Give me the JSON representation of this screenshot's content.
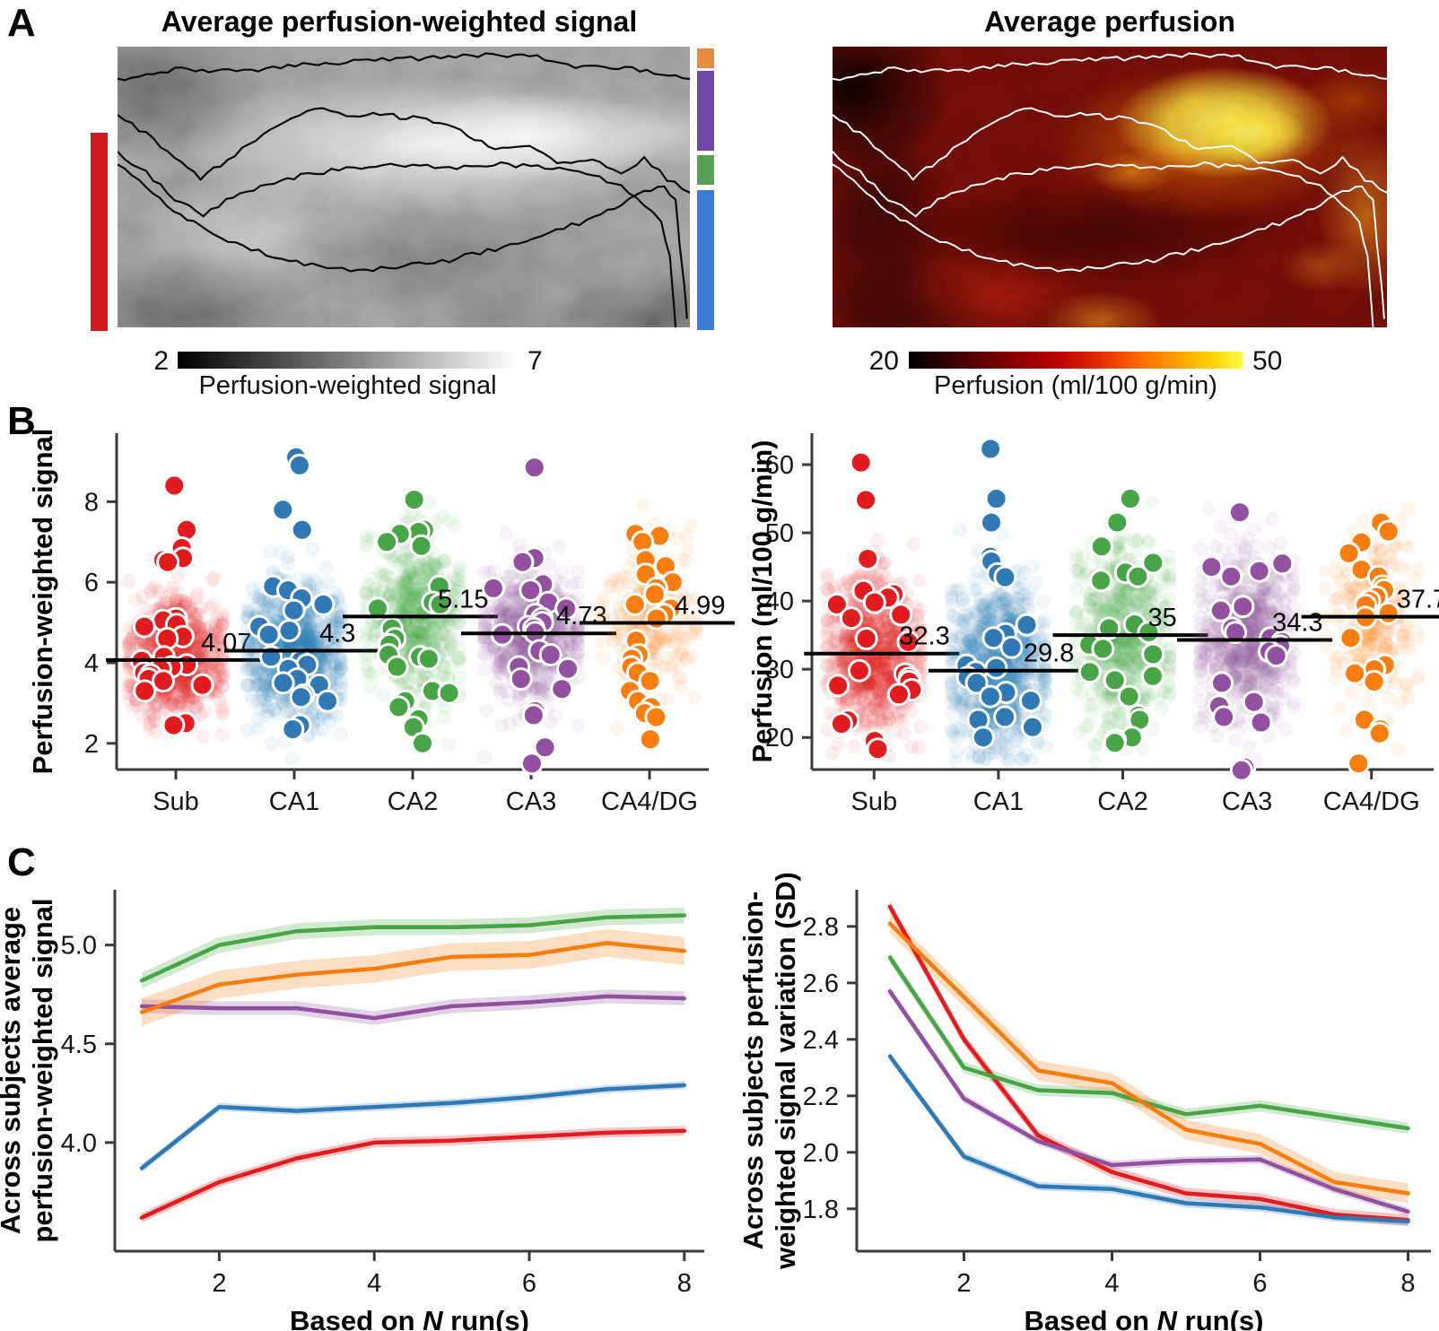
{
  "colors": {
    "series": {
      "sub": "#e21b1f",
      "ca1": "#3179b5",
      "ca2": "#47a447",
      "ca3": "#91519e",
      "ca4dg": "#f97d0c"
    },
    "region_bars": {
      "red": "#d0181d",
      "orange": "#e78c3c",
      "purple": "#6e49a9",
      "green": "#57a053",
      "blue": "#3b7bd8"
    },
    "spine": "#3a3a3a"
  },
  "panel_a": {
    "label": "A",
    "left": {
      "title": "Average perfusion-weighted signal",
      "colorbar_min": "2",
      "colorbar_max": "7",
      "colorbar_label": "Perfusion-weighted signal"
    },
    "right": {
      "title": "Average perfusion",
      "colorbar_min": "20",
      "colorbar_max": "50",
      "colorbar_label": "Perfusion (ml/100 g/min)"
    }
  },
  "panel_b": {
    "label": "B"
  },
  "panel_c": {
    "label": "C"
  },
  "chart_data": [
    {
      "id": "b_left",
      "type": "scatter",
      "variant": "strip-plot",
      "ylabel": "Perfusion-weighted signal",
      "categories": [
        "Sub",
        "CA1",
        "CA2",
        "CA3",
        "CA4/DG"
      ],
      "colors": [
        "#e21b1f",
        "#3179b5",
        "#47a447",
        "#91519e",
        "#f97d0c"
      ],
      "yticks": [
        2,
        4,
        6,
        8
      ],
      "ytick_labels": [
        "2",
        "4",
        "6",
        "8"
      ],
      "ylim": [
        1.35,
        9.7
      ],
      "means": [
        4.07,
        4.3,
        5.15,
        4.73,
        4.99
      ],
      "mean_labels": [
        "4.07",
        "4.3",
        "5.15",
        "4.73",
        "4.99"
      ],
      "subject_points": [
        [
          8.4,
          7.3,
          6.85,
          6.6,
          6.55,
          6.5,
          5.1,
          5.05,
          4.95,
          4.9,
          4.65,
          4.6,
          4.15,
          4.05,
          3.95,
          3.9,
          3.85,
          3.75,
          3.7,
          3.6,
          3.55,
          3.45,
          3.3,
          2.5,
          2.45
        ],
        [
          9.1,
          8.9,
          7.8,
          7.3,
          5.9,
          5.8,
          5.6,
          5.45,
          5.3,
          4.9,
          4.8,
          4.7,
          4.15,
          4.05,
          3.95,
          3.85,
          3.6,
          3.5,
          3.45,
          3.2,
          3.15,
          3.05,
          2.45,
          2.35
        ],
        [
          8.05,
          7.3,
          7.25,
          7.2,
          7.0,
          6.9,
          5.9,
          5.5,
          5.45,
          5.35,
          4.85,
          4.6,
          4.45,
          4.2,
          4.15,
          4.1,
          3.9,
          3.3,
          3.25,
          3.05,
          2.9,
          2.6,
          2.4,
          2.0
        ],
        [
          8.85,
          6.6,
          6.5,
          5.95,
          5.85,
          5.8,
          5.5,
          5.35,
          5.2,
          5.1,
          5.0,
          4.9,
          4.85,
          4.75,
          4.7,
          4.3,
          4.2,
          3.9,
          3.85,
          3.6,
          3.35,
          2.8,
          2.7,
          1.9,
          1.5
        ],
        [
          7.2,
          7.15,
          7.0,
          6.55,
          6.4,
          6.2,
          6.0,
          5.85,
          5.7,
          5.45,
          5.35,
          5.2,
          5.1,
          4.55,
          4.2,
          4.1,
          3.9,
          3.75,
          3.55,
          3.3,
          3.05,
          2.9,
          2.75,
          2.65,
          2.1
        ]
      ],
      "cloud": {
        "sd": [
          0.75,
          0.85,
          1.0,
          0.8,
          0.9
        ],
        "n": [
          850,
          900,
          620,
          700,
          260
        ]
      }
    },
    {
      "id": "b_right",
      "type": "scatter",
      "variant": "strip-plot",
      "ylabel": "Perfusion (ml/100 g/min)",
      "categories": [
        "Sub",
        "CA1",
        "CA2",
        "CA3",
        "CA4/DG"
      ],
      "colors": [
        "#e21b1f",
        "#3179b5",
        "#47a447",
        "#91519e",
        "#f97d0c"
      ],
      "yticks": [
        20,
        30,
        40,
        50,
        60
      ],
      "ytick_labels": [
        "20",
        "30",
        "40",
        "50",
        "60"
      ],
      "ylim": [
        15.3,
        64.6
      ],
      "means": [
        32.3,
        29.8,
        35,
        34.3,
        37.7
      ],
      "mean_labels": [
        "32.3",
        "29.8",
        "35",
        "34.3",
        "37.7"
      ],
      "subject_points": [
        [
          60.3,
          54.8,
          46.2,
          41.5,
          41.0,
          40.5,
          39.8,
          39.5,
          38.0,
          37.5,
          34.5,
          34.0,
          29.8,
          29.3,
          28.7,
          28.2,
          27.6,
          27.0,
          26.3,
          22.5,
          22.0,
          19.5,
          18.3
        ],
        [
          62.3,
          55.0,
          51.5,
          46.5,
          45.8,
          44.0,
          43.5,
          36.5,
          35.2,
          34.6,
          33.2,
          30.6,
          30.2,
          29.6,
          28.8,
          28.0,
          26.6,
          26.0,
          25.4,
          23.0,
          22.6,
          21.5,
          20.0
        ],
        [
          55.0,
          51.5,
          48.0,
          45.6,
          44.2,
          43.6,
          43.0,
          36.6,
          36.0,
          35.4,
          33.6,
          33.0,
          32.2,
          29.6,
          29.0,
          28.4,
          26.0,
          23.2,
          22.6,
          20.0,
          19.6,
          19.2
        ],
        [
          53.0,
          45.5,
          45.0,
          44.4,
          43.6,
          39.2,
          38.6,
          36.0,
          35.4,
          34.6,
          34.0,
          33.4,
          32.6,
          32.0,
          28.0,
          25.2,
          24.6,
          23.0,
          22.2,
          15.6,
          15.2
        ],
        [
          51.5,
          50.2,
          48.6,
          47.0,
          44.6,
          43.6,
          42.2,
          41.6,
          40.6,
          40.0,
          39.4,
          38.2,
          37.6,
          34.6,
          30.6,
          30.0,
          29.4,
          28.2,
          22.6,
          21.2,
          20.6,
          16.2
        ]
      ],
      "cloud": {
        "sd": [
          5.6,
          6.2,
          6.5,
          6.0,
          6.3
        ],
        "n": [
          850,
          900,
          620,
          700,
          260
        ]
      }
    },
    {
      "id": "c_left",
      "type": "line",
      "ylabel_lines": [
        "Across subjects average",
        "perfusion-weighted signal"
      ],
      "xlabel_prefix": "Based on ",
      "xlabel_italic": "N",
      "xlabel_suffix": " run(s)",
      "x": [
        1,
        2,
        3,
        4,
        5,
        6,
        7,
        8
      ],
      "xticks": [
        2,
        4,
        6,
        8
      ],
      "xtick_labels": [
        "2",
        "4",
        "6",
        "8"
      ],
      "yticks": [
        4.0,
        4.5,
        5.0
      ],
      "ytick_labels": [
        "4.0",
        "4.5",
        "5.0"
      ],
      "ylim": [
        3.45,
        5.28
      ],
      "grid": false,
      "series": [
        {
          "name": "Sub",
          "color": "#e21b1f",
          "values": [
            3.62,
            3.8,
            3.92,
            4.0,
            4.01,
            4.03,
            4.05,
            4.06
          ],
          "band": 0.025
        },
        {
          "name": "CA1",
          "color": "#3179b5",
          "values": [
            3.87,
            4.18,
            4.16,
            4.18,
            4.2,
            4.23,
            4.27,
            4.29
          ],
          "band": 0.02
        },
        {
          "name": "CA2",
          "color": "#47a447",
          "values": [
            4.82,
            5.0,
            5.07,
            5.09,
            5.09,
            5.1,
            5.14,
            5.15
          ],
          "band": 0.04
        },
        {
          "name": "CA3",
          "color": "#91519e",
          "values": [
            4.69,
            4.68,
            4.68,
            4.63,
            4.69,
            4.71,
            4.74,
            4.73
          ],
          "band": 0.035
        },
        {
          "name": "CA4/DG",
          "color": "#f97d0c",
          "values": [
            4.66,
            4.8,
            4.85,
            4.88,
            4.94,
            4.95,
            5.01,
            4.97
          ],
          "band": 0.07
        }
      ]
    },
    {
      "id": "c_right",
      "type": "line",
      "ylabel_lines": [
        "Across subjects perfusion-",
        "weighted signal variation (SD)"
      ],
      "xlabel_prefix": "Based on ",
      "xlabel_italic": "N",
      "xlabel_suffix": " run(s)",
      "x": [
        1,
        2,
        3,
        4,
        5,
        6,
        7,
        8
      ],
      "xticks": [
        2,
        4,
        6,
        8
      ],
      "xtick_labels": [
        "2",
        "4",
        "6",
        "8"
      ],
      "yticks": [
        1.8,
        2.0,
        2.2,
        2.4,
        2.6,
        2.8
      ],
      "ytick_labels": [
        "1.8",
        "2.0",
        "2.2",
        "2.4",
        "2.6",
        "2.8"
      ],
      "ylim": [
        1.65,
        2.93
      ],
      "grid": false,
      "series": [
        {
          "name": "Sub",
          "color": "#e21b1f",
          "values": [
            2.87,
            2.4,
            2.06,
            1.93,
            1.855,
            1.835,
            1.78,
            1.76
          ],
          "band": 0.02
        },
        {
          "name": "CA1",
          "color": "#3179b5",
          "values": [
            2.34,
            1.985,
            1.88,
            1.87,
            1.82,
            1.805,
            1.77,
            1.755
          ],
          "band": 0.015
        },
        {
          "name": "CA2",
          "color": "#47a447",
          "values": [
            2.69,
            2.3,
            2.22,
            2.21,
            2.135,
            2.165,
            2.125,
            2.085
          ],
          "band": 0.02
        },
        {
          "name": "CA3",
          "color": "#91519e",
          "values": [
            2.57,
            2.19,
            2.04,
            1.955,
            1.97,
            1.975,
            1.87,
            1.79
          ],
          "band": 0.015
        },
        {
          "name": "CA4/DG",
          "color": "#f97d0c",
          "values": [
            2.81,
            2.55,
            2.29,
            2.245,
            2.08,
            2.03,
            1.895,
            1.855
          ],
          "band": 0.035
        }
      ]
    }
  ]
}
